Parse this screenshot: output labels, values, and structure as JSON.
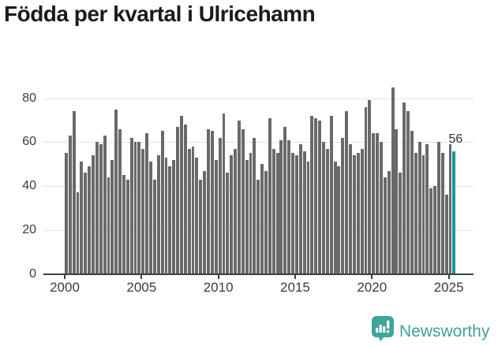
{
  "title": "Födda per kvartal i Ulricehamn",
  "branding": {
    "logo_text": "Newsworthy",
    "logo_icon": "bar-chart-speech-bubble-icon"
  },
  "colors": {
    "bar": "#69696d",
    "highlight_bar": "#0f9c93",
    "gridline": "#e4e4e4",
    "axis": "#3f3f3f",
    "tick_text": "#3a3a3a",
    "title_text": "#1b1b1b",
    "brand_teal": "#3f9f99"
  },
  "chart_data": {
    "type": "bar",
    "title": "Födda per kvartal i Ulricehamn",
    "frequency": "quarterly",
    "start": "2000-Q1",
    "end": "2025-Q2",
    "values": [
      55,
      63,
      74,
      37,
      51,
      46,
      49,
      54,
      60,
      59,
      63,
      44,
      52,
      75,
      66,
      45,
      43,
      62,
      60,
      60,
      57,
      64,
      51,
      43,
      54,
      65,
      53,
      49,
      52,
      67,
      72,
      68,
      57,
      58,
      53,
      43,
      47,
      66,
      65,
      52,
      62,
      73,
      46,
      54,
      57,
      70,
      66,
      52,
      55,
      62,
      43,
      50,
      47,
      71,
      57,
      55,
      61,
      67,
      61,
      55,
      54,
      59,
      56,
      51,
      72,
      71,
      70,
      60,
      57,
      72,
      51,
      49,
      62,
      74,
      59,
      54,
      55,
      57,
      76,
      79,
      64,
      64,
      60,
      44,
      47,
      85,
      66,
      46,
      78,
      74,
      65,
      55,
      60,
      54,
      59,
      39,
      40,
      60,
      55,
      36,
      59,
      56
    ],
    "highlight_last": true,
    "last_value_label": "56",
    "x_ticks": [
      {
        "label": "2000",
        "index": 0
      },
      {
        "label": "2005",
        "index": 20
      },
      {
        "label": "2010",
        "index": 40
      },
      {
        "label": "2015",
        "index": 60
      },
      {
        "label": "2020",
        "index": 80
      },
      {
        "label": "2025",
        "index": 100
      }
    ],
    "y_ticks": [
      0,
      20,
      40,
      60,
      80
    ],
    "ylim": [
      0,
      88
    ],
    "grid": "horizontal",
    "legend": "none",
    "xlabel": "",
    "ylabel": ""
  }
}
